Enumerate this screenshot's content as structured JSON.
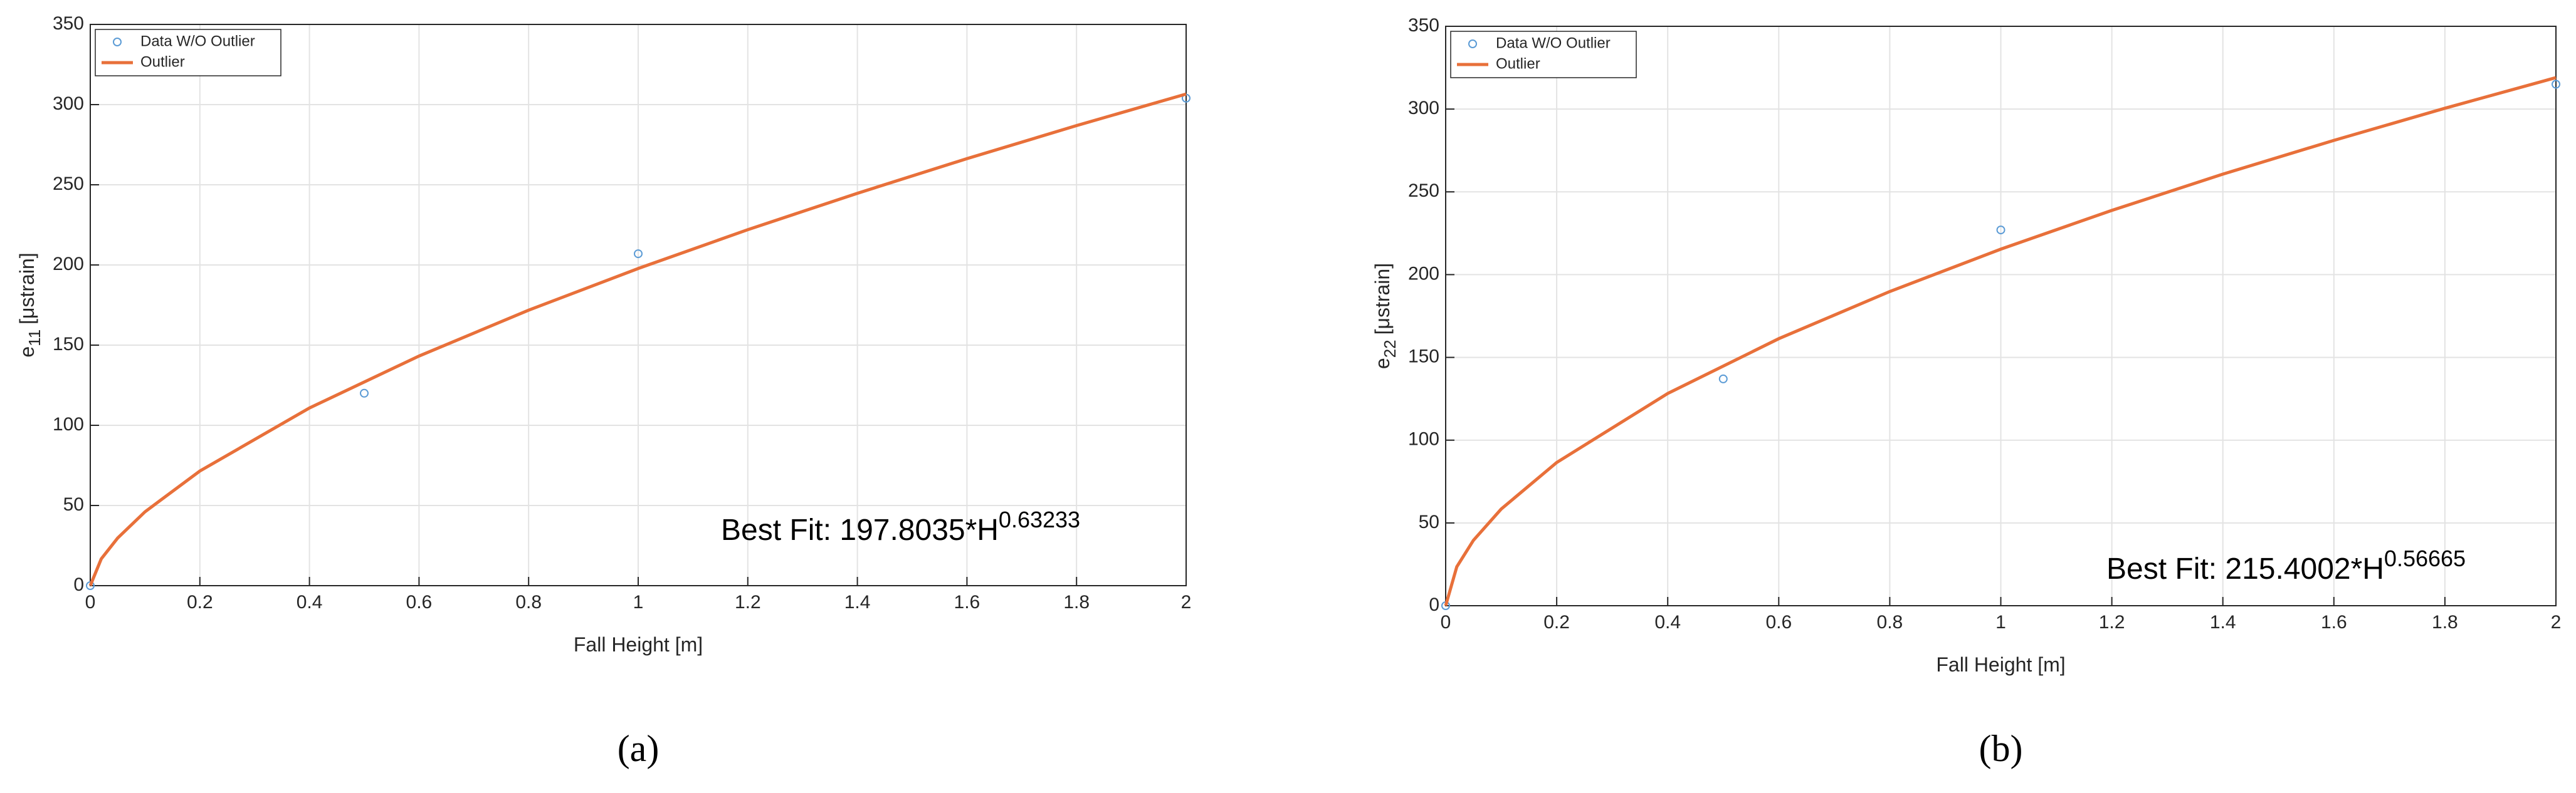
{
  "chart_data": [
    {
      "type": "scatter",
      "panel_label": "(a)",
      "xlabel": "Fall Height [m]",
      "ylabel": {
        "base": "e",
        "sub": "11",
        "unit": "[μstrain]"
      },
      "annotation": {
        "text": "Best Fit: 197.8035*H",
        "sup": "0.63233"
      },
      "xlim": [
        0,
        2
      ],
      "xticks": [
        0,
        0.2,
        0.4,
        0.6,
        0.8,
        1,
        1.2,
        1.4,
        1.6,
        1.8,
        2
      ],
      "ylim": [
        0,
        350
      ],
      "yticks": [
        0,
        50,
        100,
        150,
        200,
        250,
        300,
        350
      ],
      "grid": true,
      "legend": "upper left",
      "series": [
        {
          "name": "Data W/O Outlier",
          "style": "markers",
          "color": "#5b9bd5",
          "x": [
            0,
            0.5,
            1,
            2
          ],
          "values": [
            0,
            120,
            207,
            304
          ]
        },
        {
          "name": "Outlier",
          "style": "line",
          "color": "#e8703a",
          "x": [
            0,
            0.02,
            0.05,
            0.1,
            0.2,
            0.4,
            0.6,
            0.8,
            1,
            1.2,
            1.4,
            1.6,
            1.8,
            2
          ],
          "values": [
            0,
            16.7,
            29.7,
            46.1,
            71.5,
            110.8,
            143.2,
            171.8,
            197.8,
            222.0,
            244.7,
            266.3,
            286.9,
            306.6
          ]
        }
      ]
    },
    {
      "type": "scatter",
      "panel_label": "(b)",
      "xlabel": "Fall Height [m]",
      "ylabel": {
        "base": "e",
        "sub": "22",
        "unit": "[μstrain]"
      },
      "annotation": {
        "text": "Best Fit: 215.4002*H",
        "sup": "0.56665"
      },
      "xlim": [
        0,
        2
      ],
      "xticks": [
        0,
        0.2,
        0.4,
        0.6,
        0.8,
        1,
        1.2,
        1.4,
        1.6,
        1.8,
        2
      ],
      "ylim": [
        0,
        350
      ],
      "yticks": [
        0,
        50,
        100,
        150,
        200,
        250,
        300,
        350
      ],
      "grid": true,
      "legend": "upper left",
      "series": [
        {
          "name": "Data W/O Outlier",
          "style": "markers",
          "color": "#5b9bd5",
          "x": [
            0,
            0.5,
            1,
            2
          ],
          "values": [
            0,
            137,
            227,
            315
          ]
        },
        {
          "name": "Outlier",
          "style": "line",
          "color": "#e8703a",
          "x": [
            0,
            0.02,
            0.05,
            0.1,
            0.2,
            0.4,
            0.6,
            0.8,
            1,
            1.2,
            1.4,
            1.6,
            1.8,
            2
          ],
          "values": [
            0,
            23.5,
            39.5,
            58.4,
            86.5,
            128.2,
            161.3,
            189.8,
            215.4,
            238.8,
            260.7,
            281.1,
            300.5,
            319.0
          ]
        }
      ]
    }
  ]
}
